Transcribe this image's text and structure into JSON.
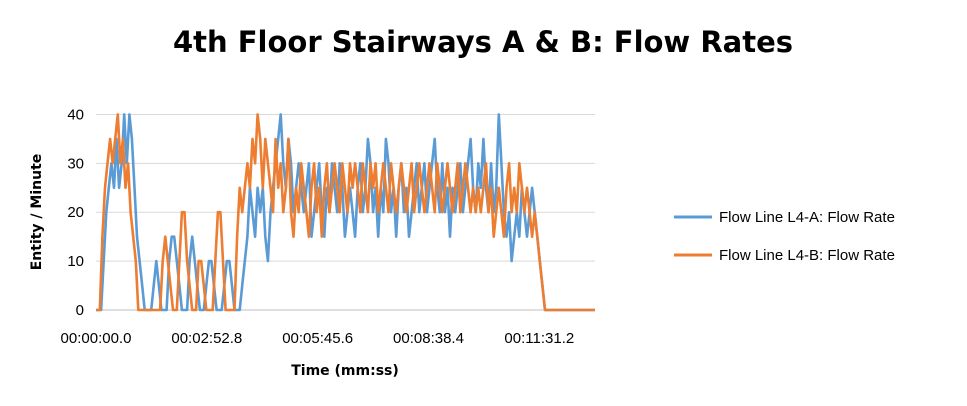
{
  "chart_data": {
    "type": "line",
    "title": "4th Floor Stairways A & B: Flow Rates",
    "xlabel": "Time (mm:ss)",
    "ylabel": "Entity / Minute",
    "xlim_seconds": [
      0,
      778
    ],
    "ylim": [
      0,
      45
    ],
    "y_ticks": [
      0,
      10,
      20,
      30,
      40
    ],
    "x_ticks": [
      {
        "seconds": 0,
        "label": "00:00:00.0"
      },
      {
        "seconds": 172.8,
        "label": "00:02:52.8"
      },
      {
        "seconds": 345.6,
        "label": "00:05:45.6"
      },
      {
        "seconds": 518.4,
        "label": "00:08:38.4"
      },
      {
        "seconds": 691.2,
        "label": "00:11:31.2"
      }
    ],
    "grid": true,
    "legend_position": "right",
    "series": [
      {
        "name": "Flow Line L4-A: Flow Rate",
        "color": "#5B9BD5",
        "points": [
          [
            0,
            0
          ],
          [
            8,
            0
          ],
          [
            12,
            10
          ],
          [
            16,
            20
          ],
          [
            20,
            25
          ],
          [
            24,
            30
          ],
          [
            28,
            25
          ],
          [
            32,
            35
          ],
          [
            36,
            25
          ],
          [
            40,
            30
          ],
          [
            44,
            40
          ],
          [
            48,
            30
          ],
          [
            52,
            40
          ],
          [
            56,
            35
          ],
          [
            60,
            25
          ],
          [
            64,
            15
          ],
          [
            68,
            10
          ],
          [
            72,
            5
          ],
          [
            76,
            0
          ],
          [
            86,
            0
          ],
          [
            90,
            5
          ],
          [
            94,
            10
          ],
          [
            98,
            5
          ],
          [
            102,
            0
          ],
          [
            110,
            0
          ],
          [
            114,
            10
          ],
          [
            118,
            15
          ],
          [
            122,
            15
          ],
          [
            126,
            10
          ],
          [
            130,
            5
          ],
          [
            134,
            0
          ],
          [
            142,
            0
          ],
          [
            146,
            10
          ],
          [
            150,
            15
          ],
          [
            154,
            10
          ],
          [
            158,
            5
          ],
          [
            162,
            0
          ],
          [
            168,
            0
          ],
          [
            172,
            5
          ],
          [
            176,
            10
          ],
          [
            180,
            10
          ],
          [
            184,
            5
          ],
          [
            188,
            0
          ],
          [
            196,
            0
          ],
          [
            200,
            5
          ],
          [
            204,
            10
          ],
          [
            208,
            10
          ],
          [
            212,
            5
          ],
          [
            216,
            0
          ],
          [
            224,
            0
          ],
          [
            228,
            5
          ],
          [
            232,
            10
          ],
          [
            236,
            15
          ],
          [
            240,
            25
          ],
          [
            244,
            20
          ],
          [
            248,
            15
          ],
          [
            252,
            25
          ],
          [
            256,
            20
          ],
          [
            260,
            25
          ],
          [
            264,
            15
          ],
          [
            268,
            10
          ],
          [
            272,
            20
          ],
          [
            276,
            25
          ],
          [
            280,
            30
          ],
          [
            284,
            35
          ],
          [
            288,
            40
          ],
          [
            292,
            30
          ],
          [
            296,
            25
          ],
          [
            300,
            35
          ],
          [
            304,
            30
          ],
          [
            308,
            20
          ],
          [
            312,
            25
          ],
          [
            316,
            30
          ],
          [
            320,
            25
          ],
          [
            324,
            20
          ],
          [
            328,
            25
          ],
          [
            332,
            30
          ],
          [
            336,
            15
          ],
          [
            340,
            20
          ],
          [
            344,
            25
          ],
          [
            348,
            30
          ],
          [
            352,
            20
          ],
          [
            356,
            15
          ],
          [
            360,
            25
          ],
          [
            364,
            20
          ],
          [
            368,
            30
          ],
          [
            372,
            25
          ],
          [
            376,
            20
          ],
          [
            380,
            30
          ],
          [
            384,
            25
          ],
          [
            388,
            15
          ],
          [
            392,
            20
          ],
          [
            396,
            25
          ],
          [
            400,
            20
          ],
          [
            404,
            15
          ],
          [
            408,
            25
          ],
          [
            412,
            30
          ],
          [
            416,
            20
          ],
          [
            420,
            25
          ],
          [
            424,
            35
          ],
          [
            428,
            30
          ],
          [
            432,
            20
          ],
          [
            436,
            25
          ],
          [
            440,
            15
          ],
          [
            444,
            25
          ],
          [
            448,
            20
          ],
          [
            452,
            35
          ],
          [
            456,
            30
          ],
          [
            460,
            20
          ],
          [
            464,
            25
          ],
          [
            468,
            15
          ],
          [
            472,
            25
          ],
          [
            476,
            30
          ],
          [
            480,
            20
          ],
          [
            484,
            25
          ],
          [
            488,
            15
          ],
          [
            492,
            20
          ],
          [
            496,
            25
          ],
          [
            500,
            30
          ],
          [
            504,
            20
          ],
          [
            508,
            25
          ],
          [
            512,
            30
          ],
          [
            516,
            20
          ],
          [
            520,
            25
          ],
          [
            524,
            30
          ],
          [
            528,
            35
          ],
          [
            532,
            25
          ],
          [
            536,
            20
          ],
          [
            540,
            30
          ],
          [
            544,
            20
          ],
          [
            548,
            25
          ],
          [
            552,
            15
          ],
          [
            556,
            25
          ],
          [
            560,
            20
          ],
          [
            564,
            25
          ],
          [
            568,
            30
          ],
          [
            572,
            20
          ],
          [
            576,
            25
          ],
          [
            580,
            30
          ],
          [
            584,
            35
          ],
          [
            588,
            25
          ],
          [
            592,
            20
          ],
          [
            596,
            30
          ],
          [
            600,
            25
          ],
          [
            604,
            35
          ],
          [
            608,
            25
          ],
          [
            612,
            20
          ],
          [
            616,
            30
          ],
          [
            620,
            20
          ],
          [
            624,
            25
          ],
          [
            628,
            40
          ],
          [
            632,
            30
          ],
          [
            636,
            20
          ],
          [
            640,
            15
          ],
          [
            644,
            20
          ],
          [
            648,
            10
          ],
          [
            652,
            15
          ],
          [
            656,
            20
          ],
          [
            660,
            15
          ],
          [
            664,
            25
          ],
          [
            668,
            20
          ],
          [
            672,
            15
          ],
          [
            676,
            20
          ],
          [
            680,
            25
          ],
          [
            684,
            20
          ],
          [
            688,
            15
          ],
          [
            692,
            10
          ],
          [
            696,
            5
          ],
          [
            700,
            0
          ],
          [
            778,
            0
          ]
        ]
      },
      {
        "name": "Flow Line L4-B: Flow Rate",
        "color": "#ED7D31",
        "points": [
          [
            0,
            0
          ],
          [
            6,
            0
          ],
          [
            10,
            15
          ],
          [
            14,
            25
          ],
          [
            18,
            30
          ],
          [
            22,
            35
          ],
          [
            26,
            30
          ],
          [
            30,
            35
          ],
          [
            34,
            40
          ],
          [
            38,
            30
          ],
          [
            42,
            35
          ],
          [
            46,
            25
          ],
          [
            50,
            30
          ],
          [
            54,
            20
          ],
          [
            58,
            15
          ],
          [
            62,
            10
          ],
          [
            66,
            0
          ],
          [
            100,
            0
          ],
          [
            104,
            10
          ],
          [
            108,
            15
          ],
          [
            112,
            10
          ],
          [
            116,
            5
          ],
          [
            120,
            0
          ],
          [
            126,
            0
          ],
          [
            130,
            10
          ],
          [
            134,
            20
          ],
          [
            138,
            20
          ],
          [
            142,
            10
          ],
          [
            146,
            5
          ],
          [
            150,
            0
          ],
          [
            156,
            0
          ],
          [
            160,
            10
          ],
          [
            164,
            10
          ],
          [
            168,
            5
          ],
          [
            172,
            0
          ],
          [
            182,
            0
          ],
          [
            186,
            10
          ],
          [
            190,
            20
          ],
          [
            194,
            20
          ],
          [
            198,
            10
          ],
          [
            202,
            0
          ],
          [
            216,
            0
          ],
          [
            220,
            15
          ],
          [
            224,
            25
          ],
          [
            228,
            20
          ],
          [
            232,
            25
          ],
          [
            236,
            30
          ],
          [
            240,
            25
          ],
          [
            244,
            35
          ],
          [
            248,
            30
          ],
          [
            252,
            40
          ],
          [
            256,
            35
          ],
          [
            260,
            25
          ],
          [
            264,
            35
          ],
          [
            268,
            30
          ],
          [
            272,
            25
          ],
          [
            276,
            20
          ],
          [
            280,
            35
          ],
          [
            284,
            25
          ],
          [
            288,
            30
          ],
          [
            292,
            20
          ],
          [
            296,
            25
          ],
          [
            300,
            35
          ],
          [
            304,
            20
          ],
          [
            308,
            15
          ],
          [
            312,
            25
          ],
          [
            316,
            20
          ],
          [
            320,
            30
          ],
          [
            324,
            25
          ],
          [
            328,
            20
          ],
          [
            332,
            15
          ],
          [
            336,
            25
          ],
          [
            340,
            30
          ],
          [
            344,
            20
          ],
          [
            348,
            25
          ],
          [
            352,
            15
          ],
          [
            356,
            25
          ],
          [
            360,
            30
          ],
          [
            364,
            20
          ],
          [
            368,
            25
          ],
          [
            372,
            30
          ],
          [
            376,
            25
          ],
          [
            380,
            20
          ],
          [
            384,
            30
          ],
          [
            388,
            25
          ],
          [
            392,
            20
          ],
          [
            396,
            30
          ],
          [
            400,
            25
          ],
          [
            404,
            30
          ],
          [
            408,
            25
          ],
          [
            412,
            20
          ],
          [
            416,
            30
          ],
          [
            420,
            25
          ],
          [
            424,
            20
          ],
          [
            428,
            30
          ],
          [
            432,
            25
          ],
          [
            436,
            30
          ],
          [
            440,
            20
          ],
          [
            444,
            25
          ],
          [
            448,
            30
          ],
          [
            452,
            25
          ],
          [
            456,
            20
          ],
          [
            460,
            30
          ],
          [
            464,
            25
          ],
          [
            468,
            20
          ],
          [
            472,
            25
          ],
          [
            476,
            30
          ],
          [
            480,
            25
          ],
          [
            484,
            20
          ],
          [
            488,
            25
          ],
          [
            492,
            30
          ],
          [
            496,
            20
          ],
          [
            500,
            25
          ],
          [
            504,
            30
          ],
          [
            508,
            25
          ],
          [
            512,
            20
          ],
          [
            516,
            25
          ],
          [
            520,
            30
          ],
          [
            524,
            25
          ],
          [
            528,
            20
          ],
          [
            532,
            30
          ],
          [
            536,
            25
          ],
          [
            540,
            20
          ],
          [
            544,
            25
          ],
          [
            548,
            30
          ],
          [
            552,
            25
          ],
          [
            556,
            20
          ],
          [
            560,
            25
          ],
          [
            564,
            30
          ],
          [
            568,
            20
          ],
          [
            572,
            25
          ],
          [
            576,
            30
          ],
          [
            580,
            25
          ],
          [
            584,
            20
          ],
          [
            588,
            25
          ],
          [
            592,
            20
          ],
          [
            596,
            25
          ],
          [
            600,
            20
          ],
          [
            604,
            25
          ],
          [
            608,
            30
          ],
          [
            612,
            20
          ],
          [
            616,
            25
          ],
          [
            620,
            15
          ],
          [
            624,
            20
          ],
          [
            628,
            25
          ],
          [
            632,
            20
          ],
          [
            636,
            15
          ],
          [
            640,
            25
          ],
          [
            644,
            30
          ],
          [
            648,
            20
          ],
          [
            652,
            25
          ],
          [
            656,
            20
          ],
          [
            660,
            30
          ],
          [
            664,
            25
          ],
          [
            668,
            20
          ],
          [
            672,
            25
          ],
          [
            676,
            20
          ],
          [
            680,
            15
          ],
          [
            684,
            20
          ],
          [
            688,
            15
          ],
          [
            692,
            10
          ],
          [
            696,
            5
          ],
          [
            700,
            0
          ],
          [
            778,
            0
          ]
        ]
      }
    ]
  }
}
